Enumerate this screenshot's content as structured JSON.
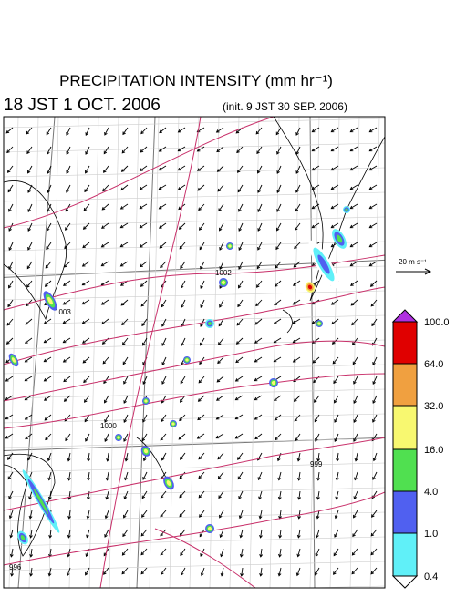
{
  "header": {
    "title": "PRECIPITATION INTENSITY (mm hr⁻¹)",
    "time": "18 JST 1 OCT. 2006",
    "init": "(init. 9 JST 30 SEP. 2006)"
  },
  "wind_reference": "20 m s⁻¹",
  "isobar_labels": [
    "1002",
    "1003",
    "1000",
    "999",
    "996"
  ],
  "colorbar": {
    "labels": [
      "100.0",
      "64.0",
      "32.0",
      "16.0",
      "4.0",
      "1.0",
      "0.4"
    ],
    "colors": [
      "#b030e0",
      "#e00000",
      "#f0a040",
      "#f8f870",
      "#50e050",
      "#5060f0",
      "#60f0f8",
      "#ffffff"
    ]
  }
}
